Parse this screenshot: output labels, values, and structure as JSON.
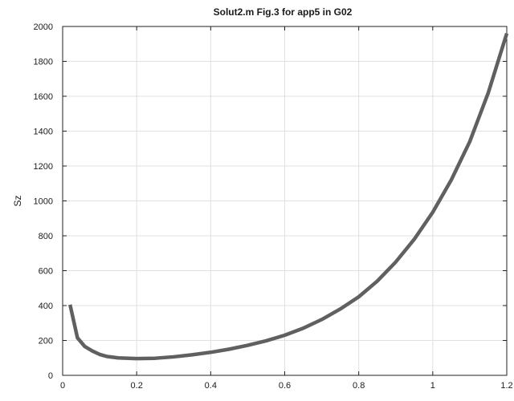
{
  "chart_data": {
    "type": "line",
    "title": "Solut2.m    Fig.3 for app5 in G02",
    "xlabel": "",
    "ylabel": "Sz",
    "xlim": [
      0,
      1.2
    ],
    "ylim": [
      0,
      2000
    ],
    "grid": true,
    "x_ticks": [
      "0",
      "0.2",
      "0.4",
      "0.6",
      "0.8",
      "1",
      "1.2"
    ],
    "y_ticks": [
      "0",
      "200",
      "400",
      "600",
      "800",
      "1000",
      "1200",
      "1400",
      "1600",
      "1800",
      "2000"
    ],
    "series": [
      {
        "color": "#606060",
        "x": [
          0.02,
          0.04,
          0.06,
          0.08,
          0.1,
          0.12,
          0.15,
          0.2,
          0.25,
          0.3,
          0.35,
          0.4,
          0.45,
          0.5,
          0.55,
          0.6,
          0.65,
          0.7,
          0.75,
          0.8,
          0.85,
          0.9,
          0.95,
          1.0,
          1.05,
          1.1,
          1.15,
          1.2
        ],
        "y": [
          405,
          215,
          165,
          140,
          120,
          108,
          100,
          96,
          98,
          106,
          118,
          132,
          150,
          172,
          198,
          230,
          270,
          320,
          380,
          450,
          540,
          650,
          780,
          935,
          1120,
          1340,
          1620,
          1960
        ]
      }
    ]
  }
}
